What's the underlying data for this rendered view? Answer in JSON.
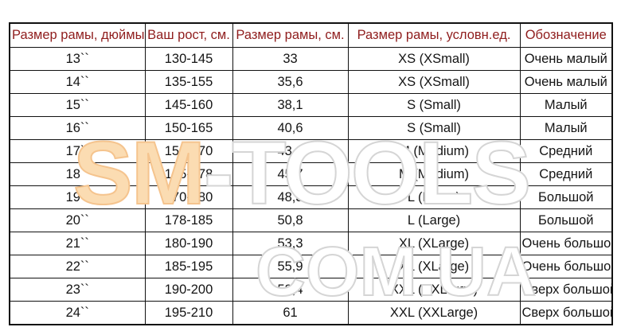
{
  "table": {
    "headers": [
      "Размер рамы, дюймы",
      "Ваш рост, см.",
      "Размер рамы, см.",
      "Размер рамы, условн.ед.",
      "Обозначение"
    ],
    "rows": [
      [
        "13``",
        "130-145",
        "33",
        "XS (XSmall)",
        "Очень малый"
      ],
      [
        "14``",
        "135-155",
        "35,6",
        "XS (XSmall)",
        "Очень малый"
      ],
      [
        "15``",
        "145-160",
        "38,1",
        "S (Small)",
        "Малый"
      ],
      [
        "16``",
        "150-165",
        "40,6",
        "S (Small)",
        "Малый"
      ],
      [
        "17``",
        "156-170",
        "43,2",
        "M (Medium)",
        "Средний"
      ],
      [
        "18``",
        "165-178",
        "45,7",
        "M (Medium)",
        "Средний"
      ],
      [
        "19``",
        "170-180",
        "48,3",
        "L (Large)",
        "Большой"
      ],
      [
        "20``",
        "178-185",
        "50,8",
        "L (Large)",
        "Большой"
      ],
      [
        "21``",
        "180-190",
        "53,3",
        "XL (XLarge)",
        "Очень большой"
      ],
      [
        "22``",
        "185-195",
        "55,9",
        "XL (XLarge)",
        "Очень большой"
      ],
      [
        "23``",
        "190-200",
        "58,4",
        "XXL (XXLarge)",
        "Сверх большой"
      ],
      [
        "24``",
        "195-210",
        "61",
        "XXL (XXLarge)",
        "Сверх большой"
      ]
    ]
  },
  "watermark": {
    "sm": "SM",
    "tools": "-TOOLS",
    "line2": "COM.UA",
    "sm_fill": "#fbdcb2",
    "sm_stroke": "#f5c48e",
    "outline_fill": "#ffffff",
    "outline_stroke": "#d5d5d5"
  },
  "colors": {
    "header_text": "#8f1d1d",
    "body_text": "#141414",
    "border": "#111111",
    "background": "#ffffff"
  }
}
